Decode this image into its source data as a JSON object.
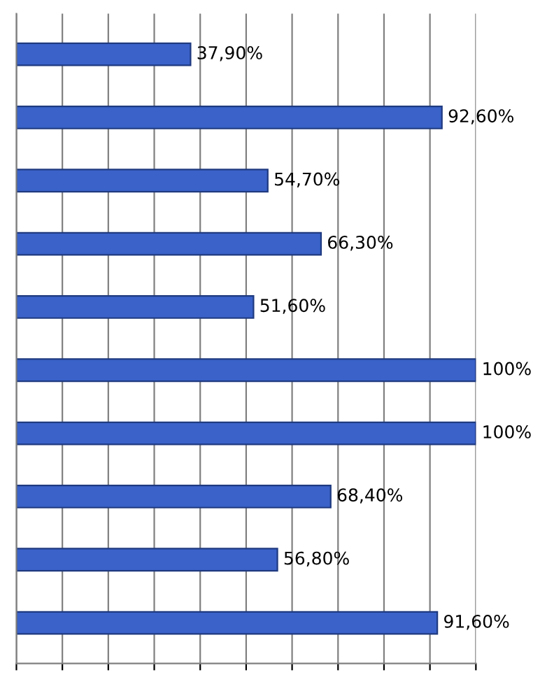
{
  "chart_data": {
    "type": "bar",
    "orientation": "horizontal",
    "categories": [
      null,
      null,
      null,
      null,
      null,
      null,
      null,
      null,
      null,
      null
    ],
    "values": [
      37.9,
      92.6,
      54.7,
      66.3,
      51.6,
      100,
      100,
      68.4,
      56.8,
      91.6
    ],
    "value_labels": [
      "37,90%",
      "92,60%",
      "54,70%",
      "66,30%",
      "51,60%",
      "100%",
      "100%",
      "68,40%",
      "56,80%",
      "91,60%"
    ],
    "color": "#3a62c9",
    "xlim": [
      0,
      100
    ],
    "xticks": [
      {
        "value": 0,
        "label": null
      },
      {
        "value": 10,
        "label": null
      },
      {
        "value": 20,
        "label": null
      },
      {
        "value": 30,
        "label": null
      },
      {
        "value": 40,
        "label": null
      },
      {
        "value": 50,
        "label": null
      },
      {
        "value": 60,
        "label": null
      },
      {
        "value": 70,
        "label": null
      },
      {
        "value": 80,
        "label": null
      },
      {
        "value": 90,
        "label": null
      },
      {
        "value": 100,
        "label": null
      }
    ],
    "grid": "x"
  }
}
